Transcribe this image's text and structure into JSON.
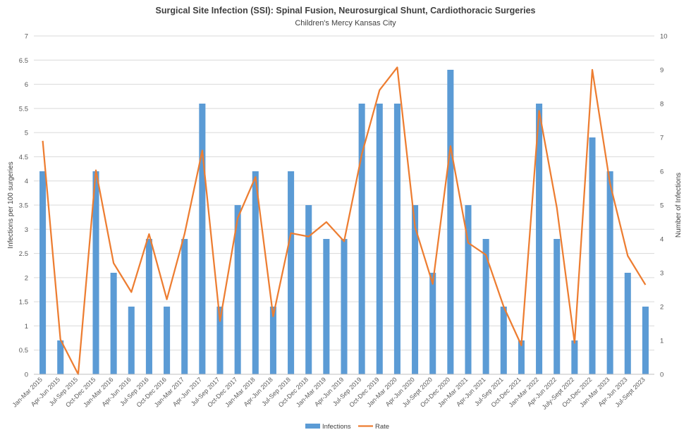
{
  "chart_data": {
    "type": "bar+line",
    "title": "Surgical Site Infection (SSI): Spinal Fusion, Neurosurgical Shunt, Cardiothoracic Surgeries",
    "subtitle": "Children's Mercy Kansas City",
    "ylabel_left": "Infections per 100 surgeries",
    "ylabel_right": "Number of Infections",
    "ylim_left": [
      0,
      7
    ],
    "yticks_left": [
      "0",
      "0.5",
      "1",
      "1.5",
      "2",
      "2.5",
      "3",
      "3.5",
      "4",
      "4.5",
      "5",
      "5.5",
      "6",
      "6.5",
      "7"
    ],
    "ylim_right": [
      0,
      10
    ],
    "yticks_right": [
      "0",
      "1",
      "2",
      "3",
      "4",
      "5",
      "6",
      "7",
      "8",
      "9",
      "10"
    ],
    "grid": true,
    "legend_position": "bottom",
    "categories": [
      "Jan-Mar 2015",
      "Apr-Jun 2015",
      "Jul-Sep 2015",
      "Oct-Dec 2015",
      "Jan-Mar 2016",
      "Apr-Jun 2016",
      "Jul-Sep 2016",
      "Oct-Dec 2016",
      "Jan-Mar 2017",
      "Apr-Jun 2017",
      "Jul-Sep 2017",
      "Oct-Dec 2017",
      "Jan-Mar 2018",
      "Apr-Jun 2018",
      "Jul-Sep 2018",
      "Oct-Dec 2018",
      "Jan-Mar 2019",
      "Apr-Jun 2019",
      "Jul-Sep 2019",
      "Oct-Dec 2019",
      "Jan-Mar 2020",
      "Apr-Jun 2020",
      "Jul-Sept 2020",
      "Oct-Dec 2020",
      "Jan-Mar 2021",
      "Apr-Jun 2021",
      "Jul-Sep 2021",
      "Oct-Dec 2021",
      "Jan-Mar 2022",
      "Apr-Jun 2022",
      "July-Sept 2022",
      "Oct-Dec 2022",
      "Jan-Mar 2023",
      "Apr-Jun 2023",
      "Jul-Sept 2023"
    ],
    "series": [
      {
        "name": "Infections",
        "type": "bar",
        "axis": "right",
        "color": "#5b9bd5",
        "values": [
          6,
          1,
          0,
          6,
          3,
          2,
          4,
          2,
          4,
          8,
          2,
          5,
          6,
          2,
          6,
          5,
          4,
          4,
          8,
          8,
          8,
          5,
          3,
          9,
          5,
          4,
          2,
          1,
          8,
          4,
          1,
          7,
          6,
          3,
          2
        ]
      },
      {
        "name": "Rate",
        "type": "line",
        "axis": "left",
        "color": "#ed7d31",
        "values": [
          4.83,
          0.72,
          0,
          4.22,
          2.3,
          1.7,
          2.9,
          1.55,
          2.9,
          4.63,
          1.1,
          3.23,
          4.08,
          1.2,
          2.92,
          2.85,
          3.15,
          2.75,
          4.55,
          5.88,
          6.35,
          3.05,
          1.87,
          4.72,
          2.72,
          2.47,
          1.4,
          0.6,
          5.45,
          3.45,
          0.65,
          6.3,
          3.95,
          2.45,
          1.85
        ]
      }
    ]
  }
}
